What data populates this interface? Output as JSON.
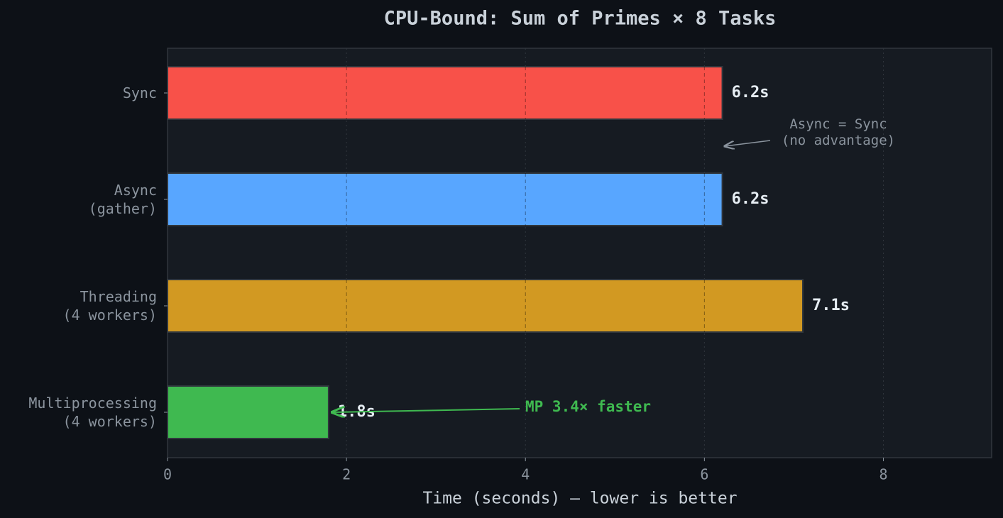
{
  "chart_data": {
    "type": "barh",
    "title": "CPU-Bound: Sum of Primes × 8 Tasks",
    "xlabel": "Time (seconds) — lower is better",
    "categories": [
      "Sync",
      "Async\n(gather)",
      "Threading\n(4 workers)",
      "Multiprocessing\n(4 workers)"
    ],
    "values": [
      6.2,
      6.2,
      7.1,
      1.8
    ],
    "value_labels": [
      "6.2s",
      "6.2s",
      "7.1s",
      "1.8s"
    ],
    "colors": [
      "#f85149",
      "#58a6ff",
      "#d29922",
      "#3fb950"
    ],
    "xlim": [
      0,
      9.21
    ],
    "xticks": [
      0,
      2,
      4,
      6,
      8
    ],
    "grid": true,
    "annotations": [
      {
        "text": "Async = Sync\n(no advantage)",
        "color": "#8b949e"
      },
      {
        "text": "MP 3.4× faster",
        "color": "#3fb950"
      }
    ]
  }
}
